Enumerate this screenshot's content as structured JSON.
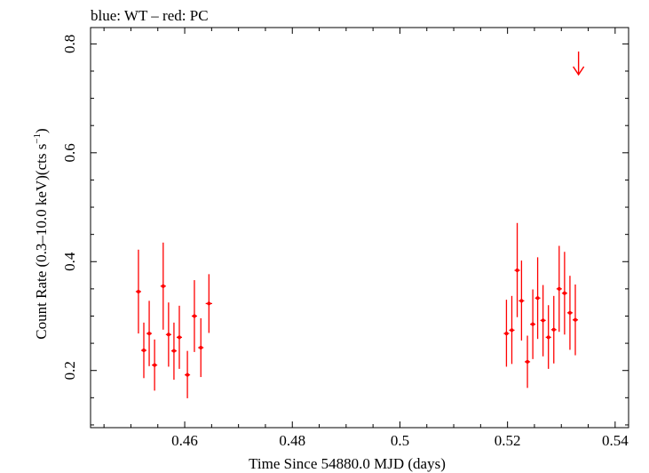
{
  "chart_data": {
    "type": "scatter",
    "title": "blue: WT – red: PC",
    "xlabel": "Time Since 54880.0 MJD (days)",
    "ylabel_main": "Count Rate (0.3–10.0 keV)(cts s",
    "ylabel_sup": "−1",
    "ylabel_end": ")",
    "xlim": [
      0.4425,
      0.5425
    ],
    "ylim": [
      0.095,
      0.83
    ],
    "x_ticks": [
      0.46,
      0.48,
      0.5,
      0.52,
      0.54
    ],
    "x_tick_labels": [
      "0.46",
      "0.48",
      "0.5",
      "0.52",
      "0.54"
    ],
    "y_ticks": [
      0.2,
      0.4,
      0.6,
      0.8
    ],
    "y_tick_labels": [
      "0.2",
      "0.4",
      "0.6",
      "0.8"
    ],
    "series": [
      {
        "name": "PC",
        "color": "#ff0000",
        "points": [
          {
            "x": 0.4514,
            "y": 0.345,
            "xerr": 0.0005,
            "ylo": 0.268,
            "yhi": 0.422
          },
          {
            "x": 0.4524,
            "y": 0.237,
            "xerr": 0.0005,
            "ylo": 0.186,
            "yhi": 0.288
          },
          {
            "x": 0.4534,
            "y": 0.268,
            "xerr": 0.0005,
            "ylo": 0.208,
            "yhi": 0.328
          },
          {
            "x": 0.4544,
            "y": 0.21,
            "xerr": 0.0005,
            "ylo": 0.163,
            "yhi": 0.257
          },
          {
            "x": 0.456,
            "y": 0.355,
            "xerr": 0.0005,
            "ylo": 0.275,
            "yhi": 0.435
          },
          {
            "x": 0.457,
            "y": 0.266,
            "xerr": 0.0005,
            "ylo": 0.207,
            "yhi": 0.325
          },
          {
            "x": 0.458,
            "y": 0.236,
            "xerr": 0.0005,
            "ylo": 0.183,
            "yhi": 0.288
          },
          {
            "x": 0.459,
            "y": 0.261,
            "xerr": 0.0005,
            "ylo": 0.203,
            "yhi": 0.319
          },
          {
            "x": 0.4605,
            "y": 0.192,
            "xerr": 0.0005,
            "ylo": 0.149,
            "yhi": 0.236
          },
          {
            "x": 0.4618,
            "y": 0.3,
            "xerr": 0.0005,
            "ylo": 0.234,
            "yhi": 0.366
          },
          {
            "x": 0.463,
            "y": 0.242,
            "xerr": 0.0005,
            "ylo": 0.188,
            "yhi": 0.296
          },
          {
            "x": 0.4645,
            "y": 0.323,
            "xerr": 0.0006,
            "ylo": 0.269,
            "yhi": 0.377
          },
          {
            "x": 0.5198,
            "y": 0.268,
            "xerr": 0.0005,
            "ylo": 0.207,
            "yhi": 0.33
          },
          {
            "x": 0.5208,
            "y": 0.274,
            "xerr": 0.0005,
            "ylo": 0.212,
            "yhi": 0.337
          },
          {
            "x": 0.5218,
            "y": 0.384,
            "xerr": 0.0005,
            "ylo": 0.298,
            "yhi": 0.471
          },
          {
            "x": 0.5226,
            "y": 0.328,
            "xerr": 0.0005,
            "ylo": 0.255,
            "yhi": 0.402
          },
          {
            "x": 0.5237,
            "y": 0.216,
            "xerr": 0.0005,
            "ylo": 0.168,
            "yhi": 0.264
          },
          {
            "x": 0.5247,
            "y": 0.285,
            "xerr": 0.0005,
            "ylo": 0.221,
            "yhi": 0.349
          },
          {
            "x": 0.5256,
            "y": 0.333,
            "xerr": 0.0005,
            "ylo": 0.258,
            "yhi": 0.408
          },
          {
            "x": 0.5266,
            "y": 0.292,
            "xerr": 0.0005,
            "ylo": 0.226,
            "yhi": 0.357
          },
          {
            "x": 0.5276,
            "y": 0.261,
            "xerr": 0.0005,
            "ylo": 0.203,
            "yhi": 0.32
          },
          {
            "x": 0.5286,
            "y": 0.275,
            "xerr": 0.0005,
            "ylo": 0.213,
            "yhi": 0.337
          },
          {
            "x": 0.5296,
            "y": 0.35,
            "xerr": 0.0005,
            "ylo": 0.271,
            "yhi": 0.429
          },
          {
            "x": 0.5306,
            "y": 0.342,
            "xerr": 0.0005,
            "ylo": 0.266,
            "yhi": 0.418
          },
          {
            "x": 0.5316,
            "y": 0.306,
            "xerr": 0.0005,
            "ylo": 0.238,
            "yhi": 0.374
          },
          {
            "x": 0.5326,
            "y": 0.293,
            "xerr": 0.0005,
            "ylo": 0.228,
            "yhi": 0.358
          }
        ],
        "upper_limits": [
          {
            "x": 0.5332,
            "y": 0.786
          }
        ]
      }
    ]
  }
}
